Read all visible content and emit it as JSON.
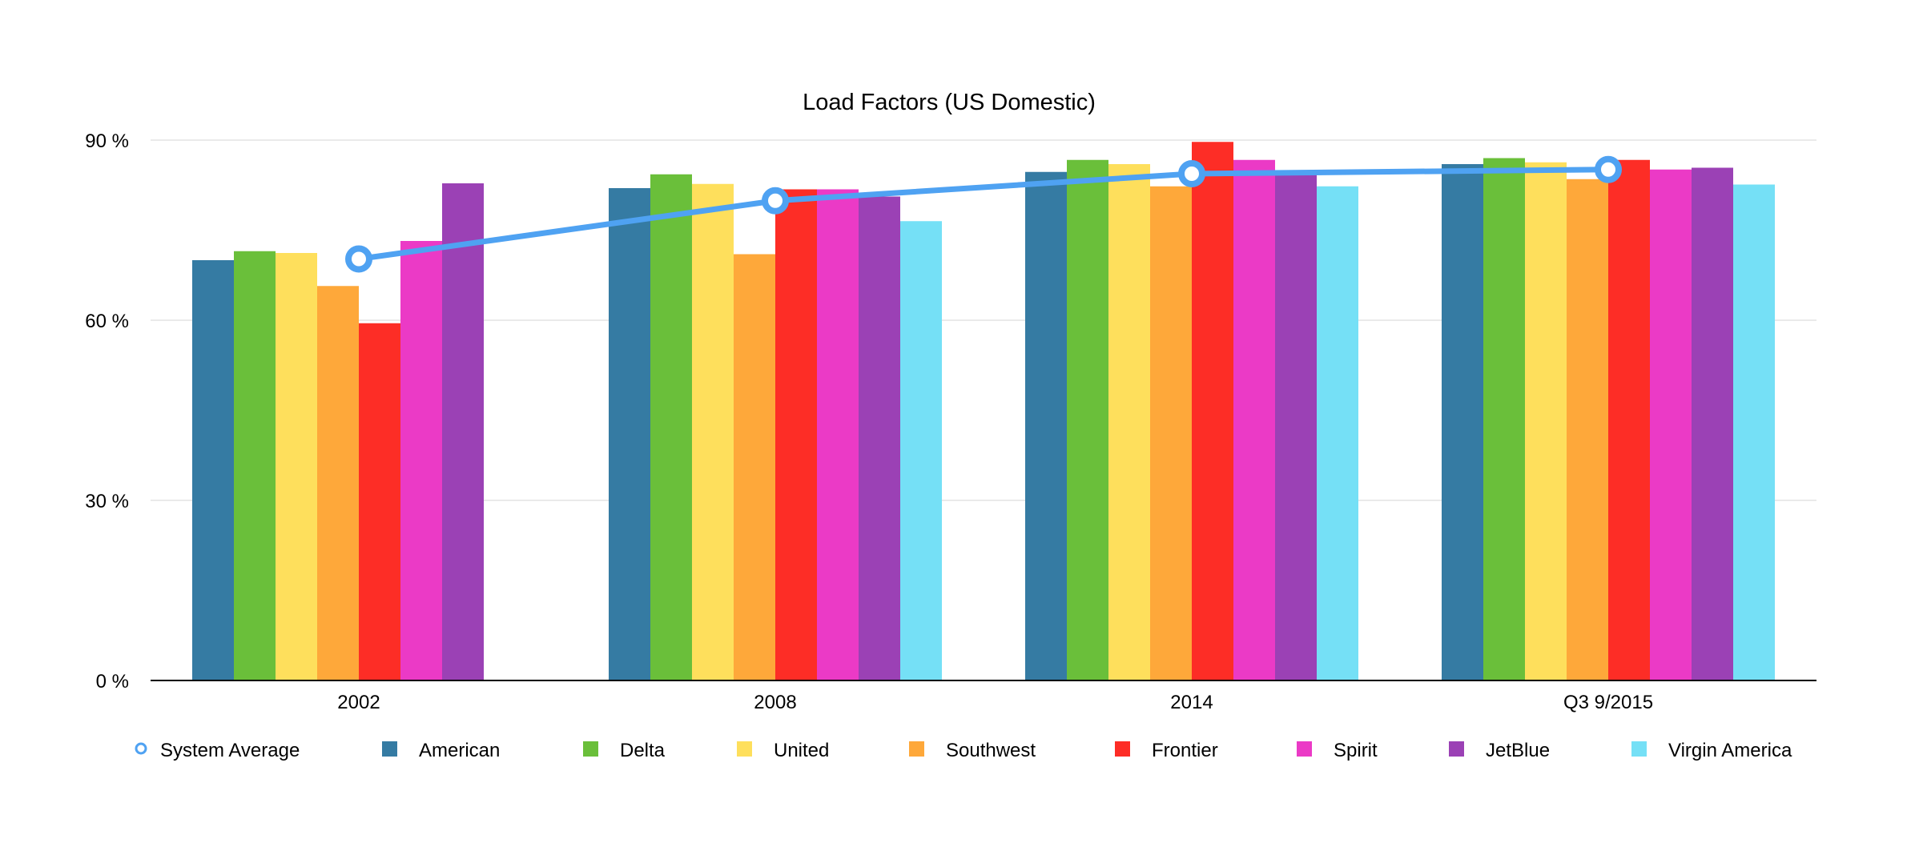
{
  "chart_data": {
    "type": "bar",
    "title": "Load Factors (US Domestic)",
    "categories": [
      "2002",
      "2008",
      "2014",
      "Q3 9/2015"
    ],
    "y_ticks": [
      "0 %",
      "30 %",
      "60 %",
      "90 %"
    ],
    "ylim": [
      0,
      90
    ],
    "grid": true,
    "legend_position": "bottom",
    "series": [
      {
        "name": "American",
        "color": "#357BA3",
        "values": [
          70,
          82,
          84.7,
          86
        ]
      },
      {
        "name": "Delta",
        "color": "#6ABF3A",
        "values": [
          71.5,
          84.3,
          86.7,
          87
        ]
      },
      {
        "name": "United",
        "color": "#FEDF5C",
        "values": [
          71.2,
          82.7,
          86,
          86.3
        ]
      },
      {
        "name": "Southwest",
        "color": "#FEA83A",
        "values": [
          65.7,
          71,
          82.3,
          83.5
        ]
      },
      {
        "name": "Frontier",
        "color": "#FD2D26",
        "values": [
          59.5,
          81.8,
          89.7,
          86.7
        ]
      },
      {
        "name": "Spirit",
        "color": "#EB3AC6",
        "values": [
          73.2,
          81.8,
          86.7,
          85.1
        ]
      },
      {
        "name": "JetBlue",
        "color": "#9B41B5",
        "values": [
          82.8,
          80.6,
          84.8,
          85.4
        ]
      },
      {
        "name": "Virgin America",
        "color": "#75E0F6",
        "values": [
          null,
          76.5,
          82.3,
          82.6
        ]
      }
    ],
    "line_series": {
      "name": "System Average",
      "color": "#4FA2F2",
      "values": [
        70.2,
        79.9,
        84.4,
        85.1
      ]
    }
  }
}
